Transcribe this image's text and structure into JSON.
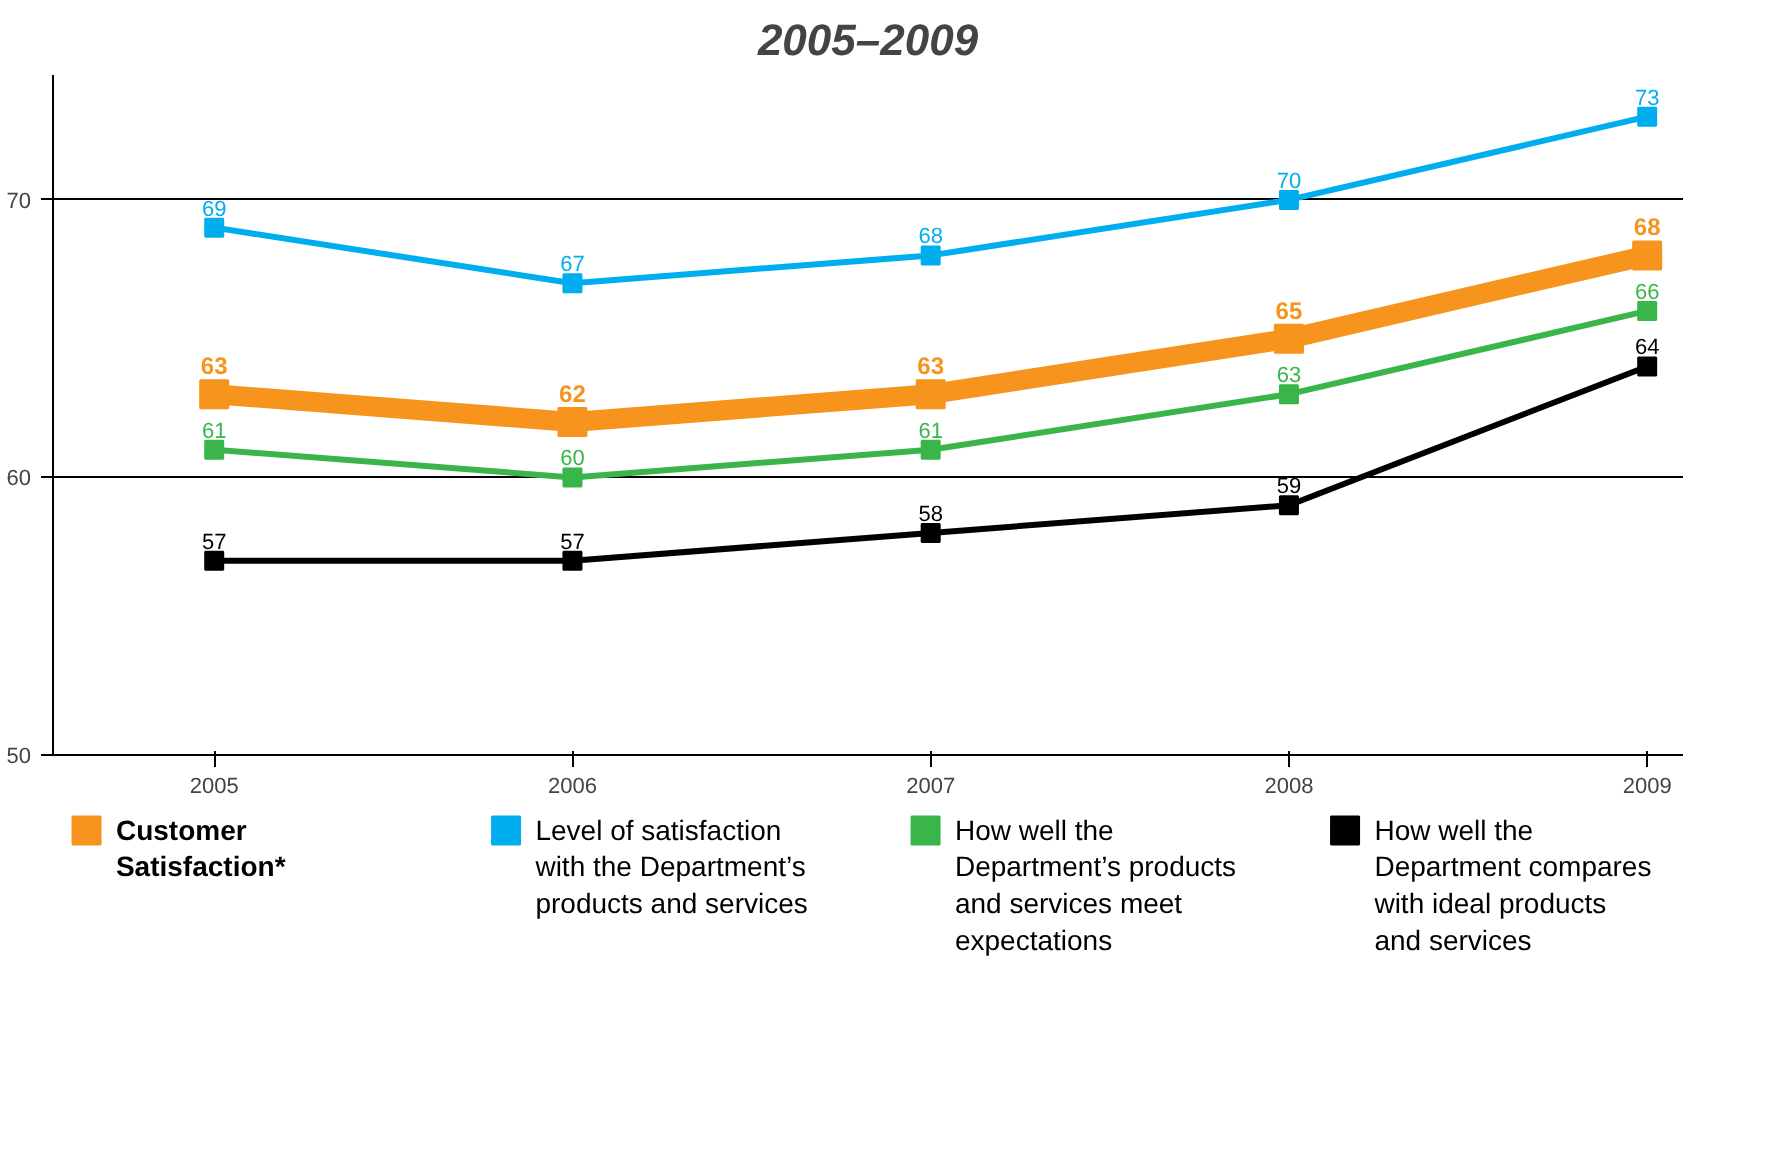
{
  "chart_data": {
    "type": "line",
    "title": "2005–2009",
    "categories": [
      "2005",
      "2006",
      "2007",
      "2008",
      "2009"
    ],
    "series": [
      {
        "name": "Customer Satisfaction*",
        "color": "#f7941d",
        "values": [
          63,
          62,
          63,
          65,
          68
        ]
      },
      {
        "name": "Level of satisfaction with the Department’s products and services",
        "color": "#00aeef",
        "values": [
          69,
          67,
          68,
          70,
          73
        ]
      },
      {
        "name": "How well the Department’s products and services meet expectations",
        "color": "#39b54a",
        "values": [
          61,
          60,
          61,
          63,
          66
        ]
      },
      {
        "name": "How well the Department compares with ideal products and services",
        "color": "#000000",
        "values": [
          57,
          57,
          58,
          59,
          64
        ]
      }
    ],
    "ylim": [
      50,
      74.5
    ],
    "yticks": [
      50,
      60,
      70
    ],
    "grid": "y",
    "legend": "bottom",
    "marker": "square",
    "line_style": "solid",
    "data_labels": true
  }
}
